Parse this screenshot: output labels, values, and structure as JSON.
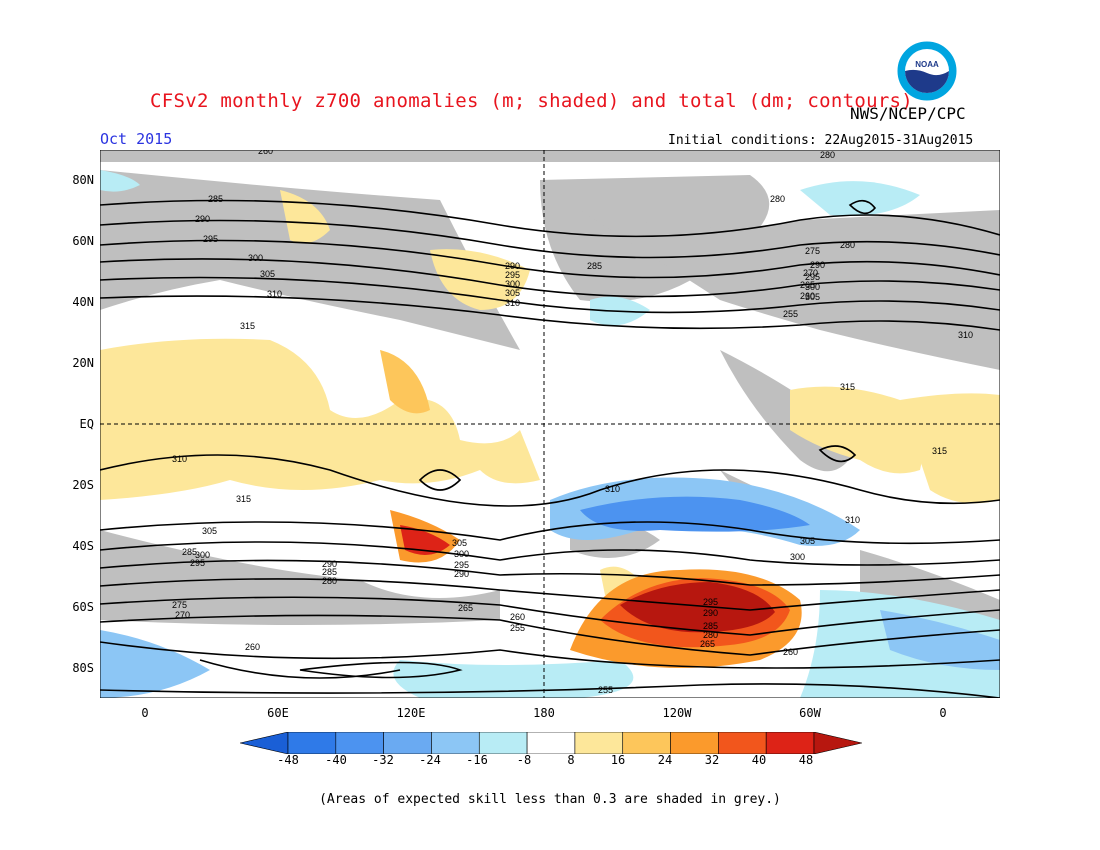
{
  "title": "CFSv2 monthly z700 anomalies (m; shaded) and total (dm; contours)",
  "agency": "NWS/NCEP/CPC",
  "logo_text": "NOAA",
  "month": "Oct 2015",
  "initial_conditions": "Initial conditions: 22Aug2015-31Aug2015",
  "footnote": "(Areas of expected skill less than 0.3 are shaded in grey.)",
  "axes": {
    "lat_labels": [
      "80N",
      "60N",
      "40N",
      "20N",
      "EQ",
      "20S",
      "40S",
      "60S",
      "80S"
    ],
    "lon_labels": [
      "0",
      "60E",
      "120E",
      "180",
      "120W",
      "60W",
      "0"
    ]
  },
  "colorbar": {
    "labels": [
      "-48",
      "-40",
      "-32",
      "-24",
      "-16",
      "-8",
      "8",
      "16",
      "24",
      "32",
      "40",
      "48"
    ],
    "colors": [
      "#1a5fd6",
      "#2f7ae8",
      "#4c93f0",
      "#6aaaf2",
      "#8cc6f5",
      "#b8ecf5",
      "#ffffff",
      "#fde79a",
      "#fdc65b",
      "#fb9a2c",
      "#f2561c",
      "#dd2317",
      "#b7170f"
    ]
  },
  "contour_labels": [
    "285",
    "290",
    "295",
    "300",
    "305",
    "310",
    "315",
    "310",
    "305",
    "300",
    "295",
    "290",
    "285",
    "280",
    "275",
    "270",
    "265",
    "260",
    "255",
    "280",
    "290",
    "295",
    "300",
    "305",
    "310",
    "315",
    "260",
    "280",
    "285",
    "295",
    "300",
    "305",
    "310",
    "315",
    "290",
    "285",
    "280",
    "275",
    "270",
    "265",
    "260",
    "255",
    "310",
    "305",
    "300",
    "295",
    "290",
    "255",
    "260",
    "260",
    "265",
    "280",
    "285",
    "290",
    "295",
    "300",
    "305",
    "310",
    "315"
  ],
  "colors": {
    "title": "#e8141e",
    "month": "#2b34e0",
    "grey_skill": "#bfbfbf",
    "neg": "#8cc6f5",
    "pos": "#fde79a"
  }
}
